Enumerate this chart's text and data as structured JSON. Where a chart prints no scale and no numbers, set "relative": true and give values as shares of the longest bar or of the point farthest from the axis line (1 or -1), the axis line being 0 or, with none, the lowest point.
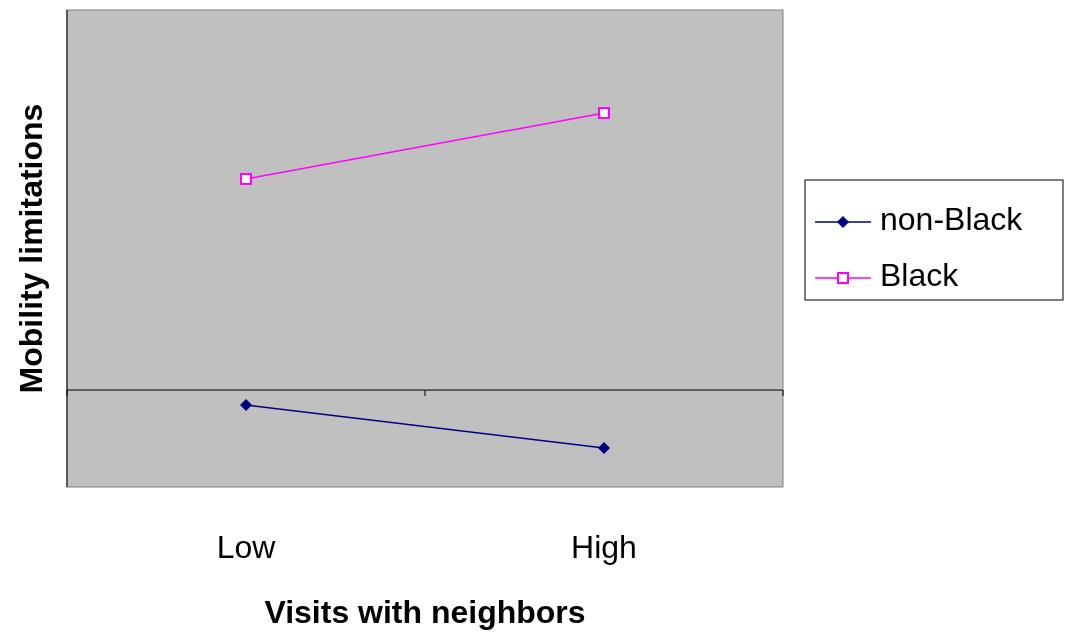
{
  "chart_data": {
    "type": "line",
    "xlabel": "Visits with neighbors",
    "ylabel": "Mobility limitations",
    "categories": [
      "Low",
      "High"
    ],
    "relative": true,
    "legend": "right",
    "series": [
      {
        "name": "non-Black",
        "color": "#000080",
        "values": [
          -0.054,
          -0.209
        ],
        "marker": "diamond"
      },
      {
        "name": "Black",
        "color": "#ff00ff",
        "values": [
          0.762,
          1
        ],
        "marker": "square"
      }
    ]
  }
}
